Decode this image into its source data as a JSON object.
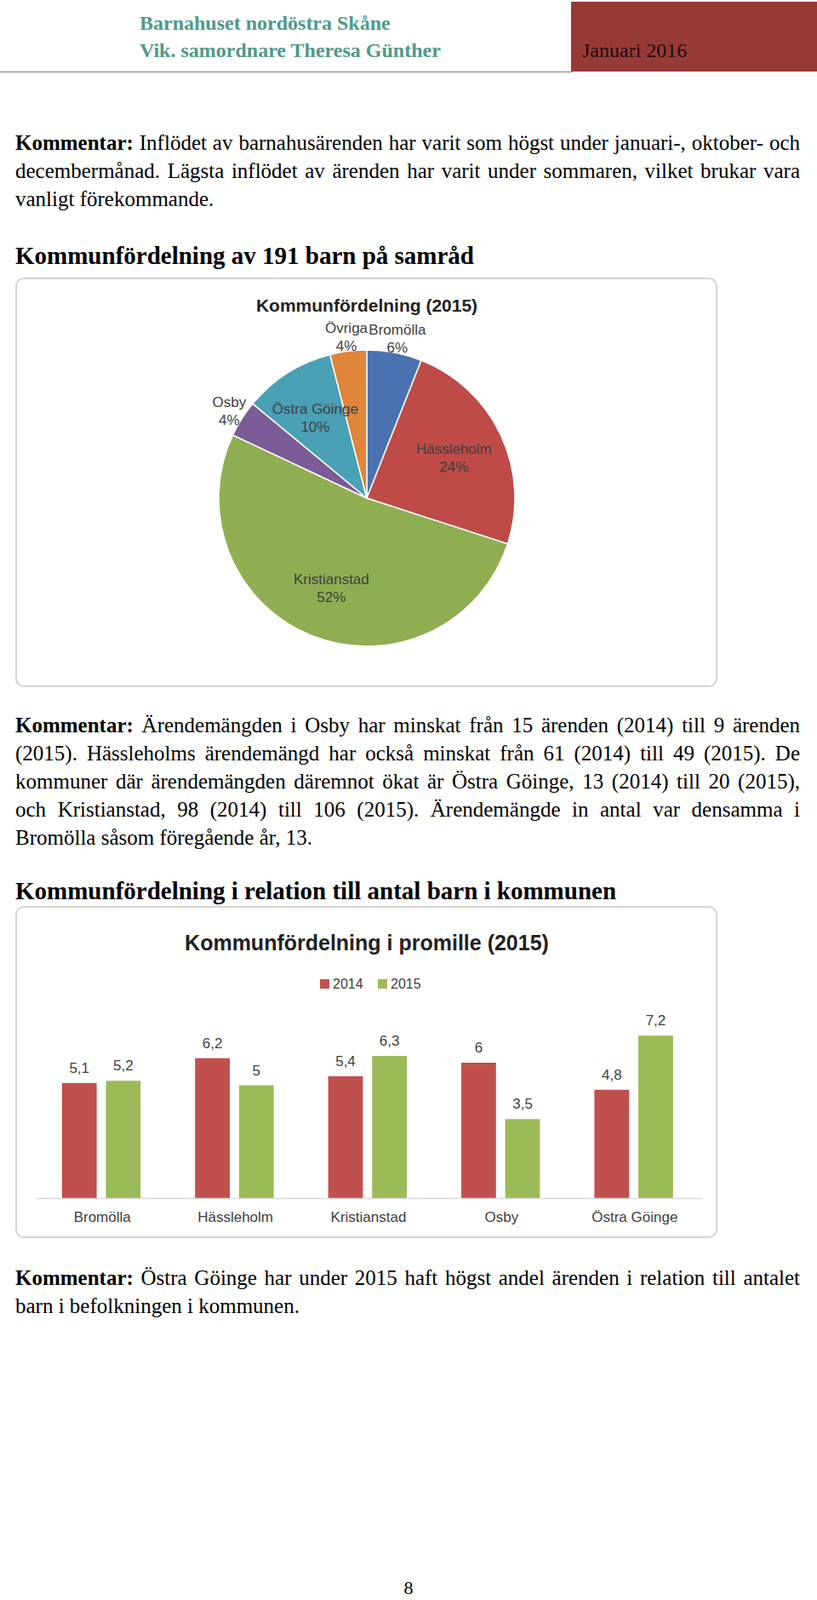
{
  "header": {
    "organization": "Barnahuset nordöstra Skåne",
    "author": "Vik. samordnare Theresa Günther",
    "date": "Januari 2016"
  },
  "comments": [
    {
      "label": "Kommentar:",
      "text": "Inflödet av barnahusärenden har varit som högst under januari-, oktober- och decembermånad. Lägsta inflödet av ärenden har varit under sommaren, vilket brukar vara vanligt förekommande."
    },
    {
      "label": "Kommentar:",
      "text": "Ärendemängden i Osby har minskat från 15 ärenden (2014) till 9 ärenden (2015). Hässleholms ärendemängd har också minskat från 61 (2014) till 49 (2015). De kommuner där ärendemängden däremnot ökat är Östra Göinge, 13 (2014) till 20 (2015), och Kristianstad, 98 (2014) till 106 (2015). Ärendemängde in antal var densamma i Bromölla såsom föregående år, 13."
    },
    {
      "label": "Kommentar:",
      "text": "Östra Göinge har under 2015 haft högst andel ärenden i relation till antalet barn i befolkningen i kommunen."
    }
  ],
  "headings": [
    "Kommunfördelning av 191 barn på samråd",
    "Kommunfördelning i relation till antal barn i kommunen"
  ],
  "chart_data": [
    {
      "type": "pie",
      "title": "Kommunfördelning (2015)",
      "categories": [
        "Bromölla",
        "Hässleholm",
        "Kristianstad",
        "Osby",
        "Östra Göinge",
        "Övriga"
      ],
      "values": [
        6,
        24,
        52,
        4,
        10,
        4
      ],
      "value_labels": [
        "6%",
        "24%",
        "52%",
        "4%",
        "10%",
        "4%"
      ],
      "colors": [
        "#4a72b0",
        "#be4b48",
        "#8fae52",
        "#7b5c96",
        "#4aa0b5",
        "#e0853a"
      ],
      "data_labels": true
    },
    {
      "type": "bar",
      "title": "Kommunfördelning i promille (2015)",
      "categories": [
        "Bromölla",
        "Hässleholm",
        "Kristianstad",
        "Osby",
        "Östra Göinge"
      ],
      "series": [
        {
          "name": "2014",
          "color": "#c0504d",
          "values": [
            5.1,
            6.2,
            5.4,
            6,
            4.8
          ],
          "value_labels": [
            "5,1",
            "6,2",
            "5,4",
            "6",
            "4,8"
          ]
        },
        {
          "name": "2015",
          "color": "#9bbb59",
          "values": [
            5.2,
            5,
            6.3,
            3.5,
            7.2
          ],
          "value_labels": [
            "5,2",
            "5",
            "6,3",
            "3,5",
            "7,2"
          ]
        }
      ],
      "ylim": [
        0,
        8
      ],
      "legend": "top",
      "data_labels": true,
      "tick_labels": "x"
    }
  ],
  "page_number": 8
}
